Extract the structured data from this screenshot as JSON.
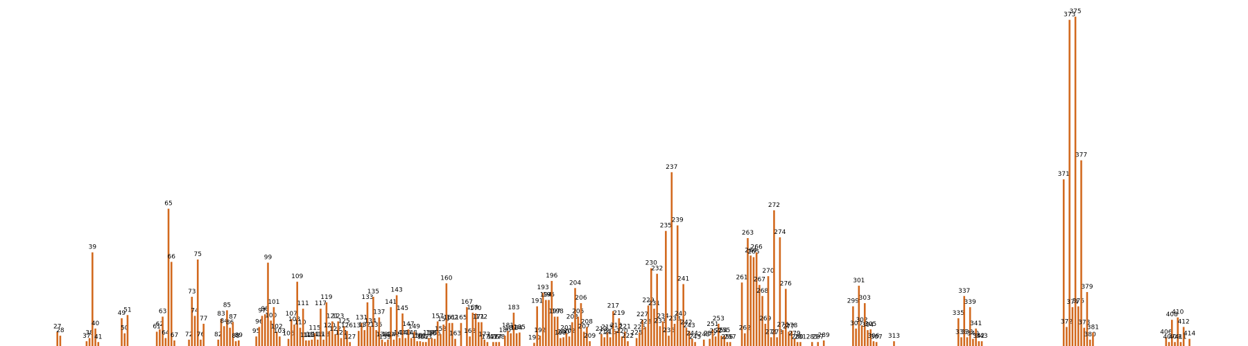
{
  "chart_data": {
    "type": "bar",
    "color": "#d2691e",
    "x": [
      27,
      28,
      37,
      38,
      39,
      40,
      41,
      49,
      50,
      51,
      61,
      62,
      63,
      64,
      65,
      66,
      67,
      72,
      73,
      74,
      75,
      76,
      77,
      82,
      83,
      84,
      85,
      86,
      87,
      88,
      89,
      95,
      96,
      97,
      98,
      99,
      100,
      101,
      102,
      103,
      106,
      107,
      108,
      109,
      110,
      111,
      112,
      113,
      114,
      115,
      116,
      117,
      118,
      119,
      120,
      121,
      122,
      123,
      124,
      125,
      126,
      127,
      130,
      131,
      132,
      133,
      134,
      135,
      136,
      137,
      138,
      139,
      140,
      141,
      142,
      143,
      144,
      145,
      146,
      147,
      148,
      149,
      150,
      151,
      152,
      153,
      154,
      155,
      156,
      157,
      158,
      159,
      160,
      161,
      162,
      163,
      165,
      167,
      168,
      169,
      170,
      171,
      172,
      173,
      174,
      176,
      177,
      178,
      180,
      181,
      182,
      183,
      184,
      185,
      190,
      191,
      192,
      193,
      194,
      195,
      196,
      197,
      198,
      199,
      200,
      201,
      202,
      203,
      204,
      205,
      206,
      207,
      208,
      209,
      213,
      214,
      215,
      216,
      217,
      218,
      219,
      220,
      221,
      222,
      225,
      226,
      227,
      228,
      229,
      230,
      231,
      232,
      233,
      234,
      235,
      236,
      237,
      238,
      239,
      240,
      241,
      242,
      243,
      244,
      245,
      248,
      250,
      251,
      252,
      253,
      254,
      255,
      256,
      257,
      261,
      262,
      263,
      264,
      265,
      266,
      267,
      268,
      269,
      270,
      271,
      272,
      273,
      274,
      275,
      276,
      277,
      278,
      279,
      280,
      281,
      285,
      287,
      289,
      299,
      300,
      301,
      302,
      303,
      304,
      305,
      306,
      307,
      313,
      335,
      336,
      337,
      338,
      339,
      340,
      341,
      342,
      343,
      371,
      372,
      373,
      374,
      375,
      376,
      377,
      378,
      379,
      380,
      381,
      406,
      407,
      408,
      409,
      410,
      411,
      412,
      414
    ],
    "values": [
      18,
      13,
      6,
      10,
      118,
      22,
      5,
      35,
      16,
      39,
      18,
      21,
      37,
      10,
      173,
      106,
      7,
      8,
      62,
      38,
      109,
      8,
      28,
      8,
      34,
      25,
      45,
      23,
      30,
      6,
      7,
      12,
      24,
      38,
      40,
      105,
      32,
      49,
      18,
      12,
      9,
      34,
      27,
      81,
      23,
      47,
      7,
      7,
      8,
      16,
      8,
      47,
      8,
      55,
      19,
      31,
      15,
      31,
      10,
      25,
      19,
      5,
      19,
      29,
      20,
      55,
      25,
      62,
      20,
      36,
      8,
      5,
      8,
      49,
      8,
      64,
      10,
      41,
      10,
      21,
      10,
      18,
      6,
      6,
      5,
      5,
      10,
      10,
      9,
      31,
      15,
      27,
      79,
      29,
      29,
      9,
      29,
      49,
      12,
      42,
      41,
      30,
      30,
      8,
      5,
      5,
      5,
      5,
      13,
      19,
      16,
      42,
      16,
      17,
      4,
      50,
      13,
      67,
      58,
      58,
      82,
      37,
      37,
      10,
      11,
      16,
      12,
      30,
      73,
      37,
      54,
      18,
      24,
      6,
      15,
      11,
      17,
      11,
      44,
      19,
      35,
      12,
      18,
      6,
      10,
      17,
      33,
      24,
      51,
      98,
      47,
      91,
      25,
      31,
      145,
      13,
      219,
      28,
      152,
      34,
      78,
      23,
      19,
      9,
      5,
      8,
      9,
      21,
      12,
      28,
      13,
      13,
      5,
      5,
      80,
      16,
      136,
      114,
      112,
      118,
      77,
      63,
      28,
      88,
      11,
      171,
      11,
      137,
      20,
      72,
      18,
      19,
      9,
      5,
      5,
      5,
      5,
      7,
      50,
      22,
      76,
      26,
      54,
      20,
      21,
      6,
      5,
      6,
      35,
      11,
      63,
      11,
      49,
      9,
      22,
      6,
      6,
      210,
      24,
      411,
      49,
      415,
      50,
      234,
      23,
      68,
      8,
      17,
      11,
      5,
      33,
      5,
      36,
      5,
      24,
      9
    ],
    "xlim": [
      7.4,
      434
    ],
    "ylim": [
      0,
      436
    ]
  }
}
